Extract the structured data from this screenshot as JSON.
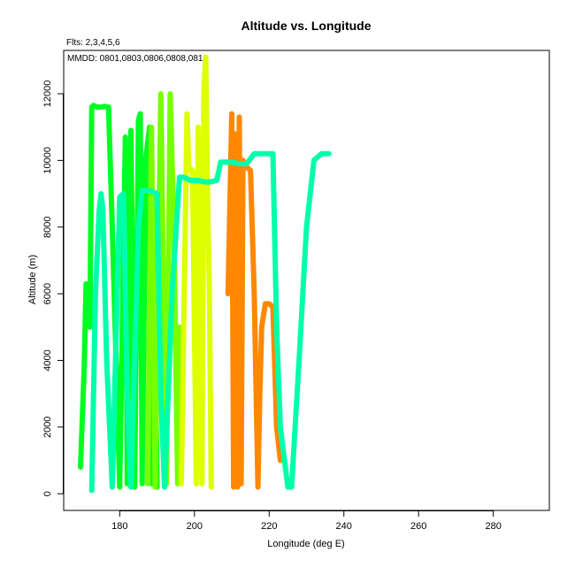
{
  "chart_data": {
    "type": "line",
    "title": "Altitude vs. Longitude",
    "subtitle": "Flts: 2,3,4,5,6",
    "legend_note": "MMDD: 0801,0803,0806,0808,0812",
    "xlabel": "Longitude (deg E)",
    "ylabel": "Altitude (m)",
    "xlim": [
      165,
      295
    ],
    "ylim": [
      -500,
      13300
    ],
    "xticks": [
      180,
      200,
      220,
      240,
      260,
      280
    ],
    "yticks": [
      0,
      2000,
      4000,
      6000,
      8000,
      10000,
      12000
    ],
    "grid": false,
    "series": [
      {
        "color": "#00ff22",
        "x": [
          169.5,
          170.5,
          171,
          172,
          172.5,
          173,
          174,
          175,
          176,
          177,
          178,
          180,
          181.5,
          182,
          183,
          184,
          185,
          185.5,
          186,
          187,
          188,
          188.5,
          189,
          190
        ],
        "y": [
          800,
          3800,
          6300,
          5000,
          11600,
          11650,
          11600,
          11600,
          11620,
          11600,
          8000,
          200,
          10700,
          300,
          10900,
          200,
          11200,
          11400,
          300,
          10100,
          11000,
          300,
          9000,
          200
        ]
      },
      {
        "color": "#77ff00",
        "x": [
          187.5,
          188.5,
          189.5,
          191,
          191.5,
          192.5,
          193.5,
          194.5,
          195.5,
          196
        ],
        "y": [
          300,
          11000,
          200,
          12000,
          8000,
          300,
          12000,
          8000,
          300,
          5000
        ]
      },
      {
        "color": "#ddff00",
        "x": [
          196.5,
          198,
          198.5,
          199,
          199.5,
          200.5,
          201,
          202,
          202.5,
          203,
          203.5,
          204,
          204.5
        ],
        "y": [
          300,
          11400,
          9700,
          9750,
          9700,
          300,
          11000,
          300,
          12000,
          13100,
          9000,
          6000,
          200
        ]
      },
      {
        "color": "#ff8800",
        "x": [
          209,
          210,
          210.5,
          211,
          211.5,
          212,
          212.5,
          213,
          214,
          215,
          216,
          217,
          217.5,
          218,
          219,
          220,
          221,
          222,
          223
        ],
        "y": [
          6000,
          11400,
          200,
          10800,
          200,
          11300,
          300,
          10000,
          9800,
          9700,
          6000,
          200,
          3000,
          5000,
          5700,
          5700,
          5600,
          2000,
          1000
        ]
      },
      {
        "color": "#00ffaa",
        "x": [
          172.5,
          173.5,
          174.5,
          175,
          175.5,
          176.5,
          178,
          180,
          181,
          182,
          183,
          185,
          186,
          187,
          188,
          189,
          190,
          191,
          192,
          193,
          194,
          196,
          197,
          198,
          199,
          201,
          203,
          204,
          206,
          207,
          208,
          209,
          210,
          212,
          214,
          216,
          218,
          220,
          221,
          222,
          223,
          225,
          226,
          228,
          230,
          232,
          234,
          236
        ],
        "y": [
          100,
          6000,
          8500,
          9000,
          8500,
          4000,
          200,
          8900,
          9000,
          3000,
          200,
          8000,
          9100,
          9100,
          9100,
          9050,
          9000,
          3000,
          200,
          3000,
          6000,
          9500,
          9500,
          9450,
          9400,
          9400,
          9350,
          9350,
          9400,
          9950,
          9950,
          9950,
          9950,
          9900,
          9900,
          10200,
          10200,
          10200,
          10200,
          5000,
          2000,
          200,
          200,
          4000,
          8000,
          10000,
          10200,
          10200
        ]
      }
    ]
  }
}
